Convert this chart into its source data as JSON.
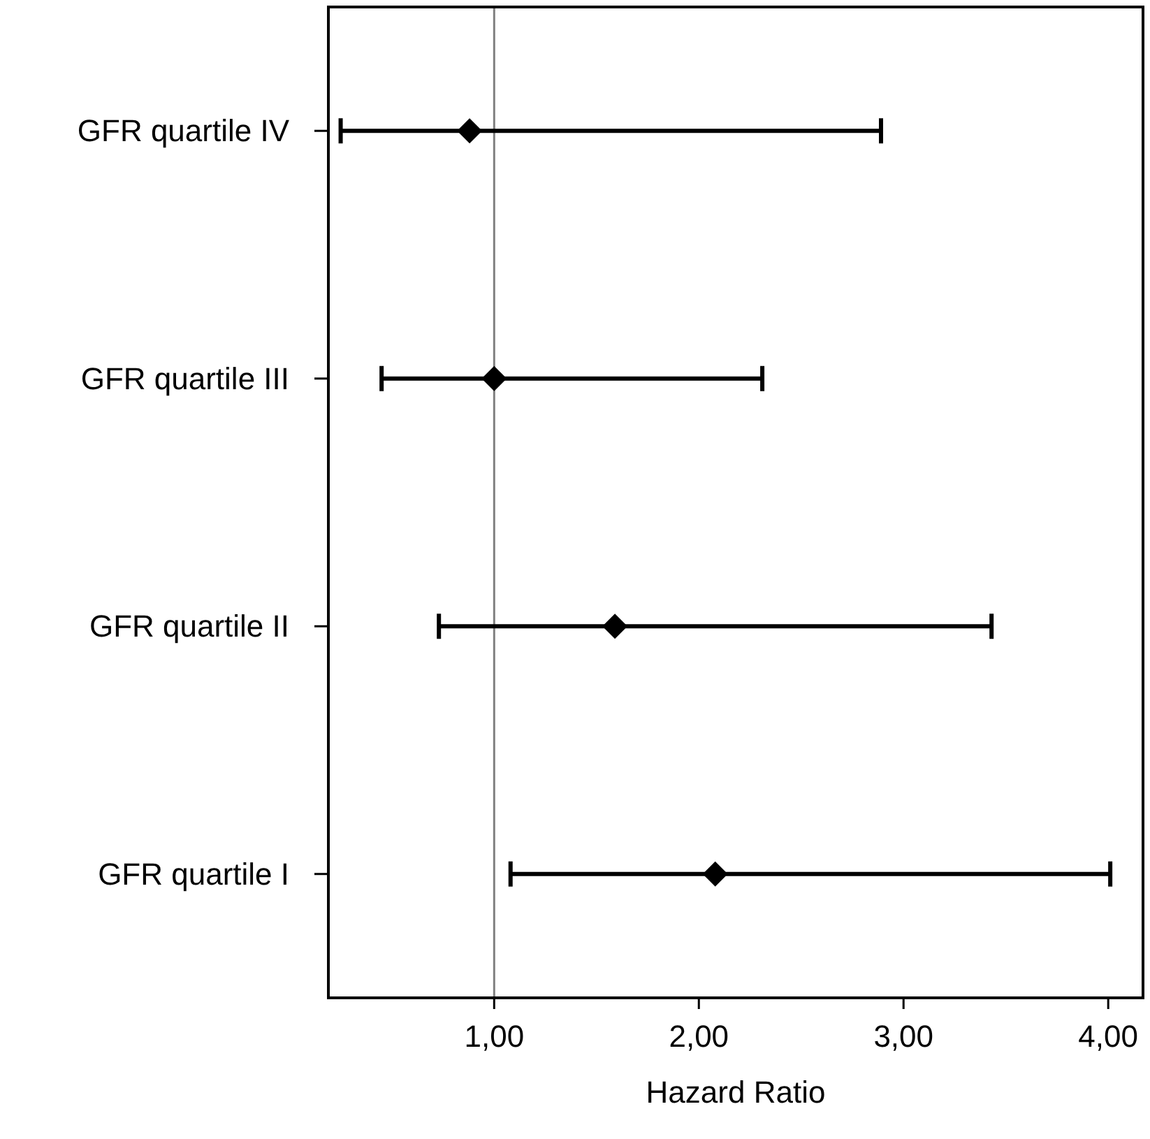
{
  "chart_data": {
    "type": "scatter",
    "orientation": "horizontal",
    "xlabel": "Hazard Ratio",
    "categories": [
      "GFR quartile IV",
      "GFR quartile III",
      "GFR quartile II",
      "GFR quartile I"
    ],
    "values": [
      0.88,
      1.0,
      1.59,
      2.08
    ],
    "errors": [
      [
        0.25,
        2.89
      ],
      [
        0.45,
        2.31
      ],
      [
        0.73,
        3.43
      ],
      [
        1.08,
        4.01
      ]
    ],
    "color": "#000000",
    "marker": "diamond",
    "xlim": [
      0.19,
      4.17
    ],
    "xticks": [
      {
        "value": 1,
        "label": "1,00"
      },
      {
        "value": 2,
        "label": "2,00"
      },
      {
        "value": 3,
        "label": "3,00"
      },
      {
        "value": 4,
        "label": "4,00"
      }
    ],
    "ref_lines": [
      {
        "axis": "x",
        "value": 1,
        "color": "#808080"
      }
    ],
    "grid": false
  }
}
